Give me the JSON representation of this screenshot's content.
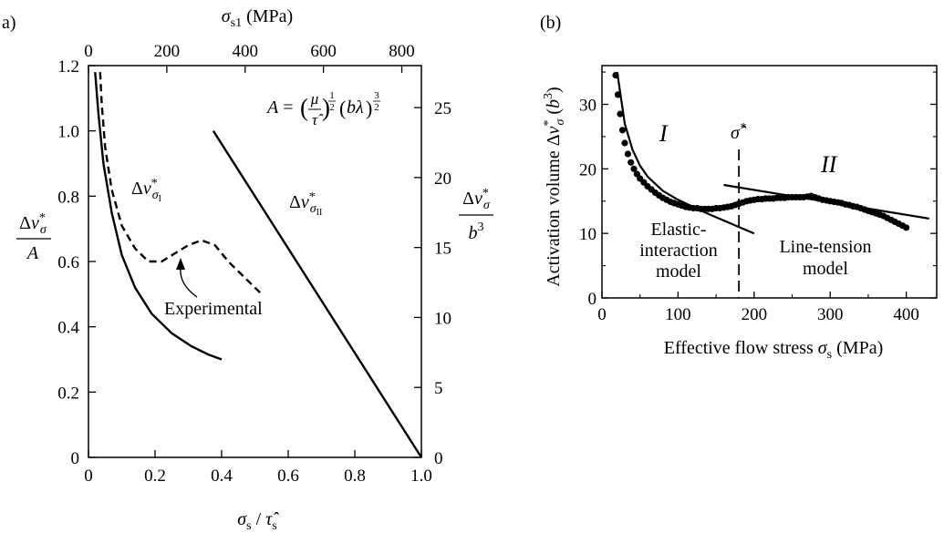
{
  "colors": {
    "ink": "#000000",
    "background": "#ffffff"
  },
  "chart_data": [
    {
      "panel": "a)",
      "type": "line",
      "x_label_bottom": "σs/τ̂s",
      "x_label_top": "σs1 (MPa)",
      "y_label_left": "Δv*σ / A",
      "y_label_right": "Δv*σ / b3",
      "xlim": [
        0,
        1.0
      ],
      "ylim": [
        0,
        1.2
      ],
      "top_xlim_mpa": [
        0,
        850
      ],
      "right_ylim": [
        0,
        28
      ],
      "x_ticks": [
        "0",
        "0.2",
        "0.4",
        "0.6",
        "0.8",
        "1.0"
      ],
      "y_ticks": [
        "0",
        "0.2",
        "0.4",
        "0.6",
        "0.8",
        "1.0",
        "1.2"
      ],
      "top_ticks": [
        "0",
        "200",
        "400",
        "600",
        "800"
      ],
      "right_ticks": [
        "0",
        "5",
        "10",
        "15",
        "20",
        "25"
      ],
      "formula": "A = (μ/τ̂)^(1/2) (bλ)^(3/2)",
      "series": [
        {
          "name": "Δv*σI",
          "style": "solid",
          "x": [
            0.02,
            0.03,
            0.045,
            0.07,
            0.1,
            0.14,
            0.19,
            0.25,
            0.31,
            0.36,
            0.4
          ],
          "y": [
            1.18,
            1.05,
            0.9,
            0.75,
            0.62,
            0.52,
            0.44,
            0.38,
            0.34,
            0.315,
            0.3
          ]
        },
        {
          "name": "Experimental",
          "style": "dashed",
          "x": [
            0.035,
            0.04,
            0.05,
            0.07,
            0.1,
            0.14,
            0.18,
            0.22,
            0.26,
            0.3,
            0.34,
            0.38,
            0.42,
            0.47,
            0.52
          ],
          "y": [
            1.18,
            1.08,
            0.95,
            0.82,
            0.71,
            0.64,
            0.6,
            0.6,
            0.625,
            0.65,
            0.665,
            0.65,
            0.6,
            0.55,
            0.5
          ]
        },
        {
          "name": "Δv*σII",
          "style": "solid",
          "x": [
            0.375,
            1.0
          ],
          "y": [
            1.0,
            0.0
          ]
        }
      ],
      "annotations": [
        {
          "text": "Experimental",
          "arrow_to": [
            0.27,
            0.6
          ]
        }
      ]
    },
    {
      "panel": "(b)",
      "type": "scatter",
      "x_label": "Effective flow stress σs (MPa)",
      "y_label": "Activation volume Δv*σ (b3)",
      "xlim": [
        0,
        440
      ],
      "ylim": [
        0,
        36
      ],
      "x_ticks": [
        "0",
        "100",
        "200",
        "300",
        "400"
      ],
      "y_ticks": [
        "0",
        "10",
        "20",
        "30"
      ],
      "vline_x": 180,
      "vline_label": "σ̂*",
      "regions": [
        "I",
        "II"
      ],
      "annotations": [
        "Elastic-interaction model",
        "Line-tension model"
      ],
      "points": {
        "x": [
          18,
          21,
          24,
          27,
          30,
          34,
          38,
          42,
          46,
          50,
          55,
          60,
          65,
          70,
          75,
          80,
          85,
          90,
          95,
          100,
          105,
          110,
          115,
          120,
          125,
          130,
          135,
          140,
          145,
          150,
          155,
          160,
          165,
          170,
          175,
          180,
          185,
          190,
          195,
          200,
          205,
          210,
          215,
          220,
          225,
          230,
          235,
          240,
          245,
          250,
          255,
          260,
          265,
          270,
          275,
          280,
          285,
          290,
          295,
          300,
          305,
          310,
          315,
          320,
          325,
          330,
          335,
          340,
          345,
          350,
          355,
          360,
          365,
          370,
          375,
          380,
          385,
          390,
          395,
          400
        ],
        "y": [
          34.5,
          31.5,
          28.5,
          26.0,
          24.0,
          22.3,
          21.0,
          20.0,
          19.2,
          18.5,
          17.9,
          17.3,
          16.8,
          16.3,
          15.9,
          15.5,
          15.2,
          14.9,
          14.7,
          14.5,
          14.3,
          14.1,
          14.0,
          13.9,
          13.9,
          13.8,
          13.8,
          13.8,
          13.8,
          13.9,
          13.9,
          14.0,
          14.1,
          14.2,
          14.4,
          14.6,
          14.8,
          15.0,
          15.1,
          15.2,
          15.3,
          15.3,
          15.4,
          15.4,
          15.4,
          15.5,
          15.5,
          15.5,
          15.6,
          15.6,
          15.6,
          15.6,
          15.6,
          15.7,
          15.8,
          15.6,
          15.4,
          15.2,
          15.1,
          15.0,
          14.9,
          14.8,
          14.7,
          14.5,
          14.4,
          14.2,
          14.1,
          13.9,
          13.7,
          13.5,
          13.3,
          13.1,
          12.9,
          12.7,
          12.4,
          12.1,
          11.8,
          11.5,
          11.2,
          10.9
        ]
      },
      "series": [
        {
          "name": "I",
          "style": "solid",
          "x": [
            20,
            30,
            40,
            50,
            60,
            80,
            100,
            120,
            140,
            160,
            180,
            200
          ],
          "y": [
            35,
            27,
            23,
            20.5,
            18.8,
            16.6,
            15.2,
            14.1,
            13.0,
            12.0,
            11.0,
            10.0
          ]
        },
        {
          "name": "II",
          "style": "solid",
          "x": [
            160,
            430
          ],
          "y": [
            17.5,
            12.3
          ]
        }
      ]
    }
  ]
}
